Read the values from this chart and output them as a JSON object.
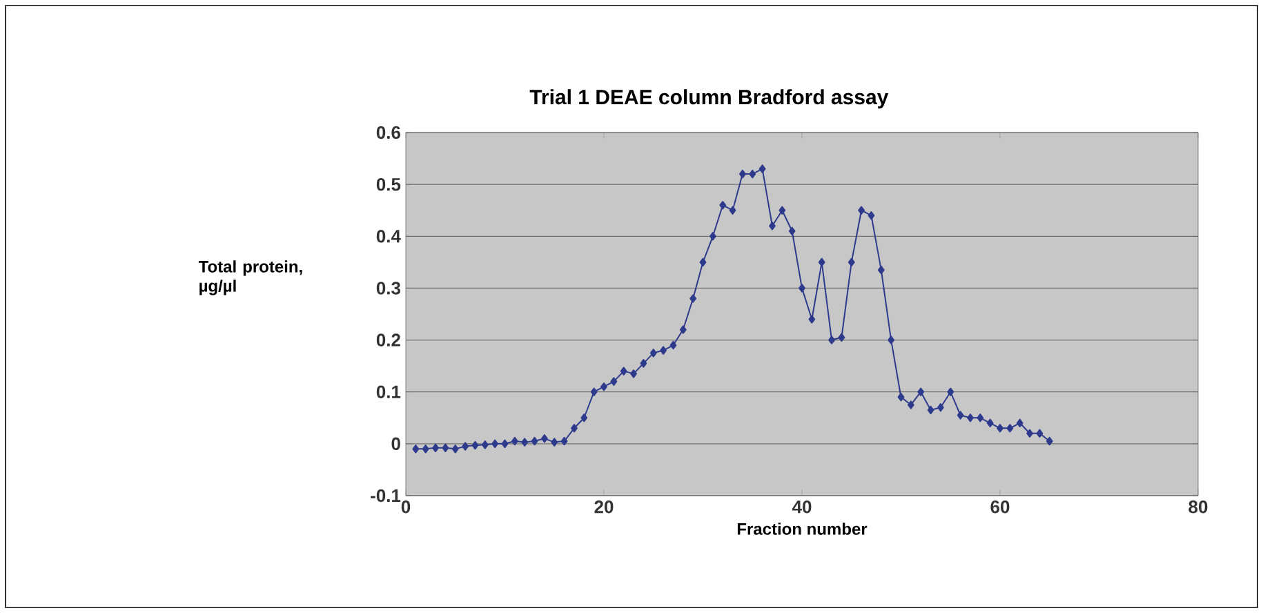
{
  "chart_data": {
    "type": "line",
    "title": "Trial 1 DEAE column Bradford assay",
    "xlabel": "Fraction number",
    "ylabel": "Total protein, µg/µl",
    "x": [
      1,
      2,
      3,
      4,
      5,
      6,
      7,
      8,
      9,
      10,
      11,
      12,
      13,
      14,
      15,
      16,
      17,
      18,
      19,
      20,
      21,
      22,
      23,
      24,
      25,
      26,
      27,
      28,
      29,
      30,
      31,
      32,
      33,
      34,
      35,
      36,
      37,
      38,
      39,
      40,
      41,
      42,
      43,
      44,
      45,
      46,
      47,
      48,
      49,
      50,
      51,
      52,
      53,
      54,
      55,
      56,
      57,
      58,
      59,
      60,
      61,
      62,
      63,
      64,
      65
    ],
    "series": [
      {
        "color": "#2e3a8c",
        "values": [
          -0.01,
          -0.01,
          -0.008,
          -0.008,
          -0.01,
          -0.005,
          -0.003,
          -0.002,
          0,
          0,
          0.005,
          0.003,
          0.005,
          0.01,
          0.003,
          0.005,
          0.03,
          0.05,
          0.1,
          0.11,
          0.12,
          0.14,
          0.135,
          0.155,
          0.175,
          0.18,
          0.19,
          0.22,
          0.28,
          0.35,
          0.4,
          0.46,
          0.45,
          0.52,
          0.52,
          0.53,
          0.42,
          0.45,
          0.41,
          0.3,
          0.24,
          0.35,
          0.2,
          0.205,
          0.35,
          0.45,
          0.44,
          0.335,
          0.2,
          0.09,
          0.075,
          0.1,
          0.065,
          0.07,
          0.1,
          0.055,
          0.05,
          0.05,
          0.04,
          0.03,
          0.03,
          0.04,
          0.02,
          0.02,
          0.005
        ]
      }
    ],
    "xlim": [
      0,
      80
    ],
    "ylim": [
      -0.1,
      0.6
    ],
    "xticks": [
      0,
      20,
      40,
      60,
      80
    ],
    "yticks": [
      -0.1,
      0,
      0.1,
      0.2,
      0.3,
      0.4,
      0.5,
      0.6
    ],
    "grid": "y",
    "marker": "diamond",
    "line_style": "solid"
  }
}
